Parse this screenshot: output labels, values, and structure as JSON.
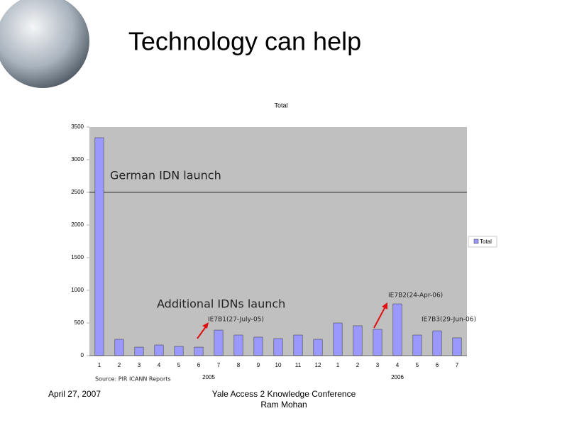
{
  "slide_title": "Technology can help",
  "footer": {
    "date": "April 27, 2007",
    "conference": "Yale Access 2 Knowledge Conference",
    "author": "Ram Mohan"
  },
  "chart_data": {
    "type": "bar",
    "title": "Total",
    "categories": [
      "1",
      "2",
      "3",
      "4",
      "5",
      "6",
      "7",
      "8",
      "9",
      "10",
      "11",
      "12",
      "1",
      "2",
      "3",
      "4",
      "5",
      "6",
      "7"
    ],
    "group_labels": [
      "2005",
      "2006"
    ],
    "series": [
      {
        "name": "Total",
        "color": "#9999ff",
        "values": [
          3337,
          250,
          130,
          163,
          141,
          130,
          391,
          315,
          283,
          261,
          315,
          250,
          500,
          457,
          402,
          793,
          315,
          380,
          272
        ]
      }
    ],
    "ylim": [
      0,
      3500
    ],
    "yticks": [
      0,
      500,
      1000,
      1500,
      2000,
      2500,
      3000,
      3500
    ],
    "reference_line": 2500,
    "annotations": [
      "German IDN launch",
      "Additional IDNs launch",
      "IE7B1(27-July-05)",
      "IE7B2(24-Apr-06)",
      "IE7B3(29-Jun-06)"
    ],
    "source": "Source: PIR ICANN Reports",
    "legend": "right"
  }
}
